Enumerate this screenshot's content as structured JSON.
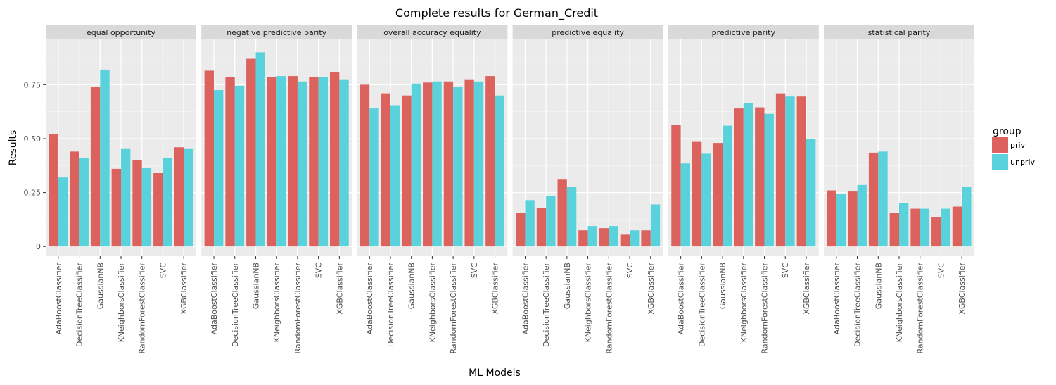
{
  "chart_data": {
    "type": "bar",
    "title": "Complete results for German_Credit",
    "xlabel": "ML Models",
    "ylabel": "Results",
    "ylim": [
      -0.045,
      0.96
    ],
    "yticks": [
      0,
      0.25,
      0.5,
      0.75
    ],
    "ytick_labels": [
      "0",
      "0.25",
      "0.50",
      "0.75"
    ],
    "grid": true,
    "legend": {
      "title": "group",
      "placement": "right",
      "entries": [
        {
          "name": "priv",
          "color": "#dc625e"
        },
        {
          "name": "unpriv",
          "color": "#5ad2dc"
        }
      ]
    },
    "categories": [
      "AdaBoostClassifier",
      "DecisionTreeClassifier",
      "GaussianNB",
      "KNeighborsClassifier",
      "RandomForestClassifier",
      "SVC",
      "XGBClassifier"
    ],
    "panels": [
      {
        "label": "equal opportunity",
        "series": [
          {
            "name": "priv",
            "values": [
              0.52,
              0.44,
              0.74,
              0.36,
              0.4,
              0.34,
              0.46
            ]
          },
          {
            "name": "unpriv",
            "values": [
              0.32,
              0.41,
              0.82,
              0.455,
              0.365,
              0.41,
              0.455
            ]
          }
        ]
      },
      {
        "label": "negative predictive parity",
        "series": [
          {
            "name": "priv",
            "values": [
              0.815,
              0.785,
              0.87,
              0.785,
              0.79,
              0.785,
              0.81
            ]
          },
          {
            "name": "unpriv",
            "values": [
              0.725,
              0.745,
              0.9,
              0.79,
              0.765,
              0.785,
              0.775
            ]
          }
        ]
      },
      {
        "label": "overall accuracy equality",
        "series": [
          {
            "name": "priv",
            "values": [
              0.75,
              0.71,
              0.7,
              0.76,
              0.765,
              0.775,
              0.79
            ]
          },
          {
            "name": "unpriv",
            "values": [
              0.64,
              0.655,
              0.755,
              0.765,
              0.74,
              0.765,
              0.7
            ]
          }
        ]
      },
      {
        "label": "predictive equality",
        "series": [
          {
            "name": "priv",
            "values": [
              0.155,
              0.18,
              0.31,
              0.075,
              0.085,
              0.055,
              0.075
            ]
          },
          {
            "name": "unpriv",
            "values": [
              0.215,
              0.235,
              0.275,
              0.095,
              0.095,
              0.075,
              0.195
            ]
          }
        ]
      },
      {
        "label": "predictive parity",
        "series": [
          {
            "name": "priv",
            "values": [
              0.565,
              0.485,
              0.48,
              0.64,
              0.645,
              0.71,
              0.695
            ]
          },
          {
            "name": "unpriv",
            "values": [
              0.385,
              0.43,
              0.56,
              0.665,
              0.615,
              0.695,
              0.5
            ]
          }
        ]
      },
      {
        "label": "statistical parity",
        "series": [
          {
            "name": "priv",
            "values": [
              0.26,
              0.255,
              0.435,
              0.155,
              0.175,
              0.135,
              0.185
            ]
          },
          {
            "name": "unpriv",
            "values": [
              0.245,
              0.285,
              0.44,
              0.2,
              0.175,
              0.175,
              0.275
            ]
          }
        ]
      }
    ]
  }
}
